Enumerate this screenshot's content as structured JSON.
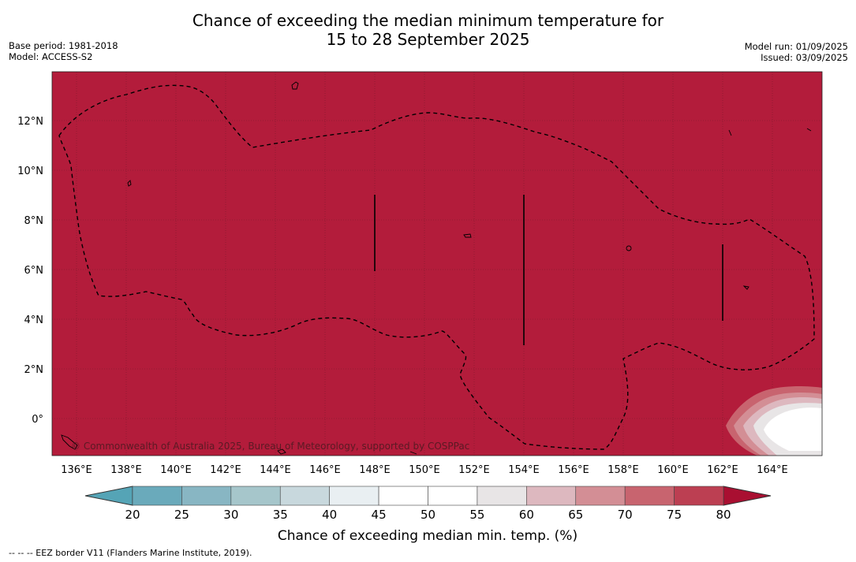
{
  "title": {
    "line1": "Chance of exceeding the median minimum temperature for",
    "line2": "15 to 28 September 2025"
  },
  "meta_left": {
    "base_period": "Base period: 1981-2018",
    "model": "Model: ACCESS-S2"
  },
  "meta_right": {
    "model_run": "Model run: 01/09/2025",
    "issued": "Issued: 03/09/2025"
  },
  "map": {
    "fill_color": "#b31c3b",
    "lat_labels": [
      "12°N",
      "10°N",
      "8°N",
      "6°N",
      "4°N",
      "2°N",
      "0°"
    ],
    "lon_labels": [
      "136°E",
      "138°E",
      "140°E",
      "142°E",
      "144°E",
      "146°E",
      "148°E",
      "150°E",
      "152°E",
      "154°E",
      "156°E",
      "158°E",
      "160°E",
      "162°E",
      "164°E"
    ],
    "copyright": "© Commonwealth of Australia 2025, Bureau of Meteorology, supported by COSPPac"
  },
  "colorbar": {
    "labels": [
      "20",
      "25",
      "30",
      "35",
      "40",
      "45",
      "50",
      "55",
      "60",
      "65",
      "70",
      "75",
      "80"
    ],
    "colors": [
      "#6aaabb",
      "#88b6c3",
      "#a6c6cb",
      "#c8d8dd",
      "#e9eff2",
      "#ffffff",
      "#ffffff",
      "#e8e5e6",
      "#ddb8bf",
      "#d38e95",
      "#c8646f",
      "#bc3f52"
    ],
    "under_color": "#55a4b6",
    "over_color": "#a90f31",
    "title": "Chance of exceeding median min. temp. (%)"
  },
  "footnote": "--  --  -- EEZ border V11 (Flanders Marine Institute, 2019)."
}
